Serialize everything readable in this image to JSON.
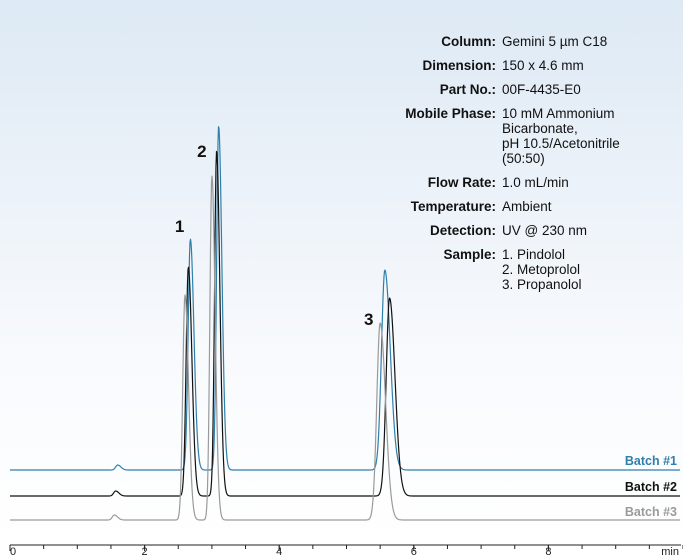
{
  "info": {
    "column_label": "Column:",
    "column_value": "Gemini 5 µm C18",
    "dimension_label": "Dimension:",
    "dimension_value": "150 x 4.6 mm",
    "partno_label": "Part No.:",
    "partno_value": "00F-4435-E0",
    "mobile_label": "Mobile Phase:",
    "mobile_lines": [
      "10 mM Ammonium",
      "Bicarbonate,",
      "pH 10.5/Acetonitrile",
      "(50:50)"
    ],
    "flow_label": "Flow Rate:",
    "flow_value": "1.0 mL/min",
    "temp_label": "Temperature:",
    "temp_value": "Ambient",
    "detection_label": "Detection:",
    "detection_value": "UV @ 230 nm",
    "sample_label": "Sample:",
    "sample_lines": [
      "1. Pindolol",
      "2. Metoprolol",
      "3. Propanolol"
    ]
  },
  "chart_data": {
    "type": "line",
    "xlabel": "min",
    "xlim": [
      0,
      10.1
    ],
    "x_ticks": [
      0,
      2,
      4,
      6,
      8
    ],
    "x_tick_labels": [
      "0",
      "2",
      "4",
      "6",
      "8"
    ],
    "x_minor_step": 0.5,
    "grid": false,
    "legend_placement": "right, inline at end of each trace",
    "peak_labels": [
      {
        "label": "1",
        "x": 2.62
      },
      {
        "label": "2",
        "x": 2.95
      },
      {
        "label": "3",
        "x": 5.43
      }
    ],
    "series": [
      {
        "name": "Batch #1",
        "color": "#2f7fab",
        "baseline": 0,
        "peaks": [
          {
            "x": 2.68,
            "height": 231,
            "width": 0.033
          },
          {
            "x": 3.1,
            "height": 344,
            "width": 0.03
          },
          {
            "x": 5.57,
            "height": 200,
            "width": 0.05
          },
          {
            "x": 1.6,
            "height": 5,
            "width": 0.03
          }
        ]
      },
      {
        "name": "Batch #2",
        "color": "#111111",
        "baseline": 0,
        "peaks": [
          {
            "x": 2.65,
            "height": 229,
            "width": 0.033
          },
          {
            "x": 3.07,
            "height": 345,
            "width": 0.03
          },
          {
            "x": 5.64,
            "height": 198,
            "width": 0.05
          },
          {
            "x": 1.57,
            "height": 5,
            "width": 0.03
          }
        ]
      },
      {
        "name": "Batch #3",
        "color": "#9a9a9a",
        "baseline": 0,
        "peaks": [
          {
            "x": 2.6,
            "height": 225,
            "width": 0.033
          },
          {
            "x": 3.0,
            "height": 344,
            "width": 0.03
          },
          {
            "x": 5.5,
            "height": 197,
            "width": 0.05
          },
          {
            "x": 1.55,
            "height": 5,
            "width": 0.03
          }
        ]
      }
    ]
  }
}
